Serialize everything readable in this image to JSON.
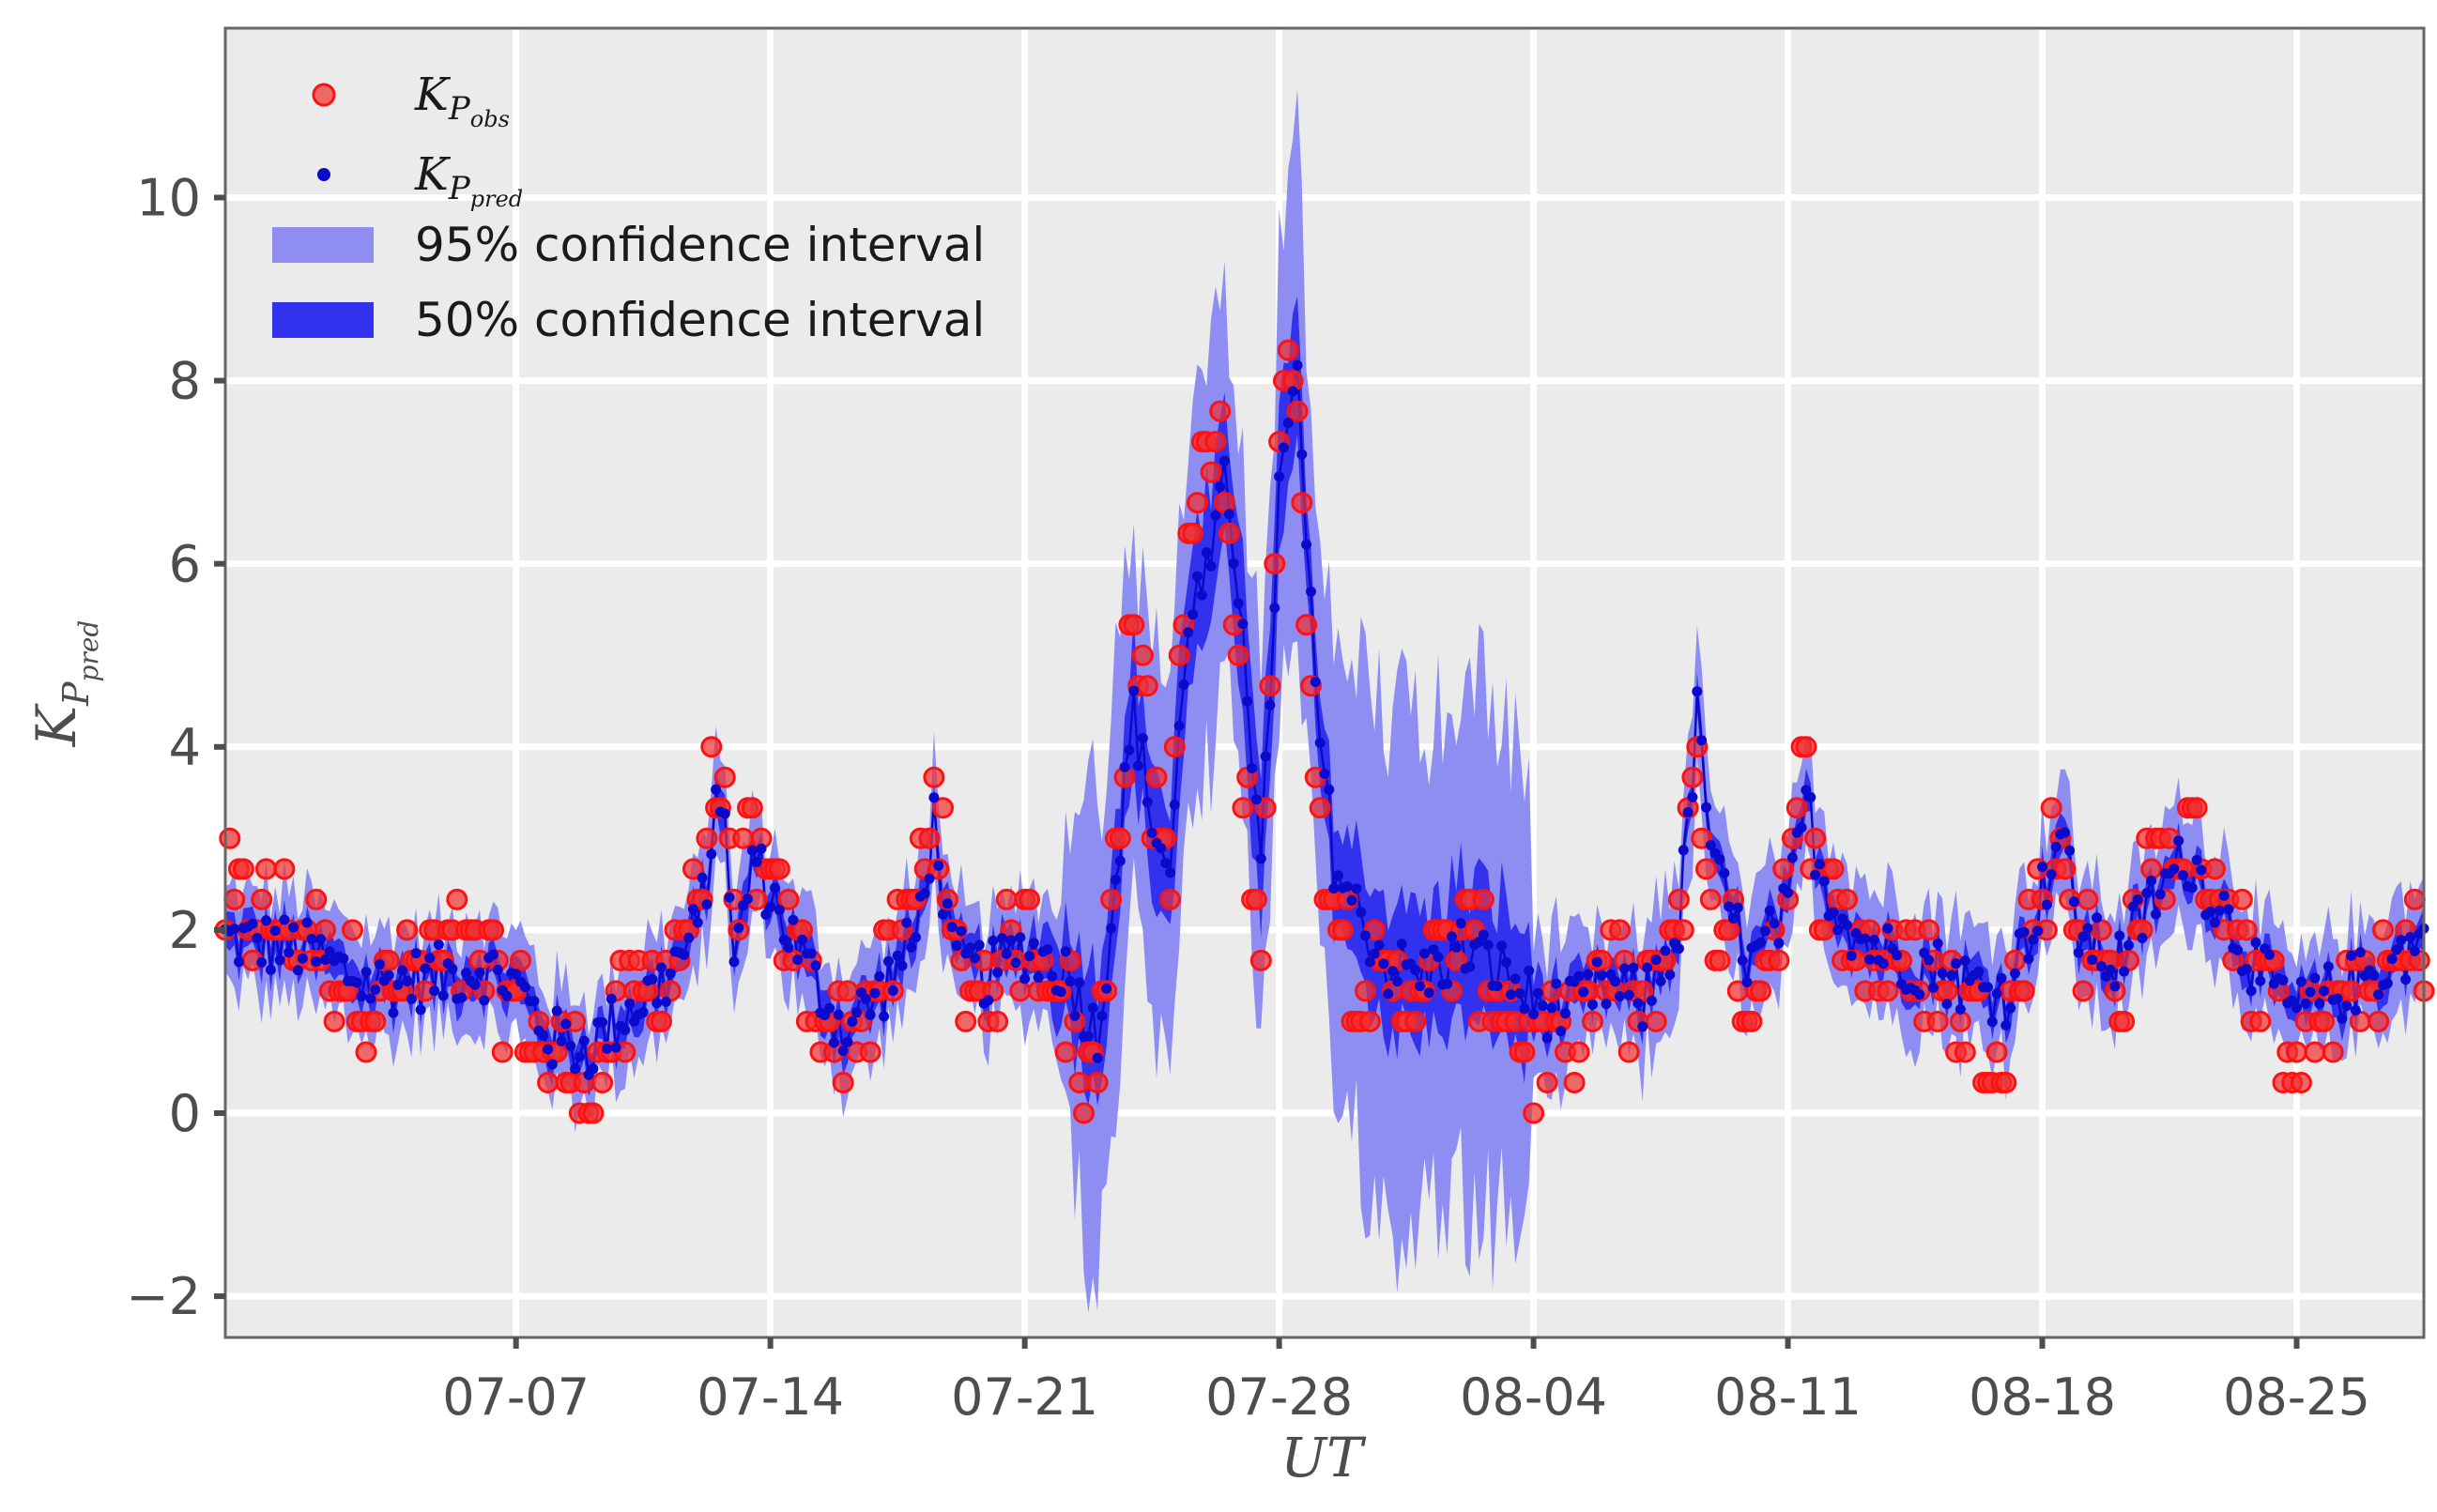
{
  "chart_data": {
    "type": "scatter",
    "title": "",
    "xlabel": "UT",
    "ylabel": {
      "base": "K",
      "sub1": "P",
      "sub2": "pred"
    },
    "x_domain": [
      "2019-06-29",
      "2019-08-28T12:00"
    ],
    "ylim": [
      -2.45,
      11.85
    ],
    "x_ticks": [
      "07-07",
      "07-14",
      "07-21",
      "07-28",
      "08-04",
      "08-11",
      "08-18",
      "08-25"
    ],
    "x_tick_dates": [
      "2019-07-07",
      "2019-07-14",
      "2019-07-21",
      "2019-07-28",
      "2019-08-04",
      "2019-08-11",
      "2019-08-18",
      "2019-08-25"
    ],
    "y_ticks": [
      -2,
      0,
      2,
      4,
      6,
      8,
      10
    ],
    "y_tick_labels": [
      "−2",
      "0",
      "2",
      "4",
      "6",
      "8",
      "10"
    ],
    "grid": true,
    "legend_position": "top-left",
    "colors": {
      "observed": "#f22f2f",
      "predicted": "#0a0acc",
      "ci95": "#8e8ef2",
      "ci50": "#3232ee",
      "panel": "#ebebeb",
      "grid": "#ffffff",
      "frame": "#666666"
    },
    "legend": [
      {
        "kind": "obs",
        "base": "K",
        "sub1": "P",
        "sub2": "obs"
      },
      {
        "kind": "pred",
        "base": "K",
        "sub1": "P",
        "sub2": "pred"
      },
      {
        "kind": "ci95",
        "label": "95% confidence interval"
      },
      {
        "kind": "ci50",
        "label": "50% confidence interval"
      }
    ],
    "series": [
      {
        "name": "predicted",
        "sampling": "every 3 hours from 2019-06-29T00:00 (one value per 3-hour bin, in order)",
        "values": [],
        "keyframes": [
          [
            "2019-06-29T00:00",
            1.9
          ],
          [
            "2019-07-01",
            1.8
          ],
          [
            "2019-07-03",
            1.4
          ],
          [
            "2019-07-05",
            1.5
          ],
          [
            "2019-07-06",
            1.6
          ],
          [
            "2019-07-07",
            1.4
          ],
          [
            "2019-07-08",
            0.8
          ],
          [
            "2019-07-09",
            0.7
          ],
          [
            "2019-07-10",
            1.1
          ],
          [
            "2019-07-11",
            1.4
          ],
          [
            "2019-07-12",
            2.0
          ],
          [
            "2019-07-12T12:00",
            3.2
          ],
          [
            "2019-07-12T18:00",
            3.5
          ],
          [
            "2019-07-13",
            1.5
          ],
          [
            "2019-07-13T12:00",
            2.8
          ],
          [
            "2019-07-14",
            2.4
          ],
          [
            "2019-07-15",
            1.6
          ],
          [
            "2019-07-16",
            0.9
          ],
          [
            "2019-07-17",
            1.3
          ],
          [
            "2019-07-18",
            1.9
          ],
          [
            "2019-07-18T12:00",
            3.2
          ],
          [
            "2019-07-19",
            1.7
          ],
          [
            "2019-07-20",
            1.5
          ],
          [
            "2019-07-21",
            1.8
          ],
          [
            "2019-07-22",
            1.6
          ],
          [
            "2019-07-22T12:00",
            1.3
          ],
          [
            "2019-07-23",
            0.8
          ],
          [
            "2019-07-23T12:00",
            2.6
          ],
          [
            "2019-07-24",
            4.4
          ],
          [
            "2019-07-24T12:00",
            3.2
          ],
          [
            "2019-07-25",
            2.6
          ],
          [
            "2019-07-25T12:00",
            5.5
          ],
          [
            "2019-07-26",
            5.8
          ],
          [
            "2019-07-26T12:00",
            6.8
          ],
          [
            "2019-07-27",
            5.5
          ],
          [
            "2019-07-27T12:00",
            2.5
          ],
          [
            "2019-07-28",
            6.8
          ],
          [
            "2019-07-28T12:00",
            8.0
          ],
          [
            "2019-07-29",
            4.5
          ],
          [
            "2019-07-29T12:00",
            2.8
          ],
          [
            "2019-07-30",
            2.3
          ],
          [
            "2019-07-31",
            1.6
          ],
          [
            "2019-08-01",
            1.5
          ],
          [
            "2019-08-02",
            1.8
          ],
          [
            "2019-08-03",
            1.6
          ],
          [
            "2019-08-04",
            1.2
          ],
          [
            "2019-08-05",
            1.1
          ],
          [
            "2019-08-06",
            1.4
          ],
          [
            "2019-08-07",
            1.2
          ],
          [
            "2019-08-08",
            2.0
          ],
          [
            "2019-08-08T12:00",
            4.3
          ],
          [
            "2019-08-09",
            2.6
          ],
          [
            "2019-08-10",
            1.6
          ],
          [
            "2019-08-11",
            2.2
          ],
          [
            "2019-08-11T12:00",
            3.4
          ],
          [
            "2019-08-12",
            2.5
          ],
          [
            "2019-08-13",
            1.9
          ],
          [
            "2019-08-14",
            1.7
          ],
          [
            "2019-08-15",
            1.6
          ],
          [
            "2019-08-16",
            1.4
          ],
          [
            "2019-08-17",
            1.3
          ],
          [
            "2019-08-18",
            2.4
          ],
          [
            "2019-08-18T12:00",
            3.1
          ],
          [
            "2019-08-19",
            2.0
          ],
          [
            "2019-08-20",
            1.6
          ],
          [
            "2019-08-21",
            2.3
          ],
          [
            "2019-08-22",
            2.8
          ],
          [
            "2019-08-23",
            2.2
          ],
          [
            "2019-08-24",
            1.5
          ],
          [
            "2019-08-25",
            1.1
          ],
          [
            "2019-08-26",
            1.3
          ],
          [
            "2019-08-27",
            1.5
          ],
          [
            "2019-08-28T12:00",
            1.9
          ]
        ],
        "jitter": 0.35
      },
      {
        "name": "observed",
        "sampling": "every 3 hours from 2019-06-29T00:00, Kp values on the thirds grid",
        "keyframes": [
          [
            "2019-06-29T00:00",
            2.3
          ],
          [
            "2019-07-01",
            2.0
          ],
          [
            "2019-07-03",
            1.3
          ],
          [
            "2019-07-05",
            1.7
          ],
          [
            "2019-07-06",
            1.6
          ],
          [
            "2019-07-07",
            1.2
          ],
          [
            "2019-07-08",
            0.5
          ],
          [
            "2019-07-09",
            0.4
          ],
          [
            "2019-07-10",
            1.0
          ],
          [
            "2019-07-11",
            1.4
          ],
          [
            "2019-07-12",
            2.3
          ],
          [
            "2019-07-12T12:00",
            3.8
          ],
          [
            "2019-07-12T18:00",
            3.3
          ],
          [
            "2019-07-13",
            1.8
          ],
          [
            "2019-07-13T12:00",
            3.2
          ],
          [
            "2019-07-14",
            2.3
          ],
          [
            "2019-07-15",
            1.5
          ],
          [
            "2019-07-16",
            0.8
          ],
          [
            "2019-07-17",
            1.4
          ],
          [
            "2019-07-18",
            2.2
          ],
          [
            "2019-07-18T12:00",
            3.8
          ],
          [
            "2019-07-19",
            1.6
          ],
          [
            "2019-07-20",
            1.4
          ],
          [
            "2019-07-21",
            2.0
          ],
          [
            "2019-07-22",
            1.5
          ],
          [
            "2019-07-22T12:00",
            0.6
          ],
          [
            "2019-07-23",
            0.4
          ],
          [
            "2019-07-23T12:00",
            3.0
          ],
          [
            "2019-07-24",
            5.6
          ],
          [
            "2019-07-24T12:00",
            3.5
          ],
          [
            "2019-07-25",
            2.8
          ],
          [
            "2019-07-25T12:00",
            6.2
          ],
          [
            "2019-07-26",
            7.3
          ],
          [
            "2019-07-26T12:00",
            7.0
          ],
          [
            "2019-07-27",
            3.8
          ],
          [
            "2019-07-27T12:00",
            2.0
          ],
          [
            "2019-07-28",
            7.5
          ],
          [
            "2019-07-28T12:00",
            8.3
          ],
          [
            "2019-07-29",
            3.4
          ],
          [
            "2019-07-29T12:00",
            2.6
          ],
          [
            "2019-07-30",
            1.6
          ],
          [
            "2019-07-31",
            1.2
          ],
          [
            "2019-08-01",
            1.6
          ],
          [
            "2019-08-02",
            1.9
          ],
          [
            "2019-08-03",
            1.4
          ],
          [
            "2019-08-04",
            0.6
          ],
          [
            "2019-08-05",
            0.8
          ],
          [
            "2019-08-06",
            1.6
          ],
          [
            "2019-08-07",
            1.0
          ],
          [
            "2019-08-08",
            2.3
          ],
          [
            "2019-08-08T12:00",
            3.8
          ],
          [
            "2019-08-09",
            2.0
          ],
          [
            "2019-08-10",
            1.3
          ],
          [
            "2019-08-11",
            2.4
          ],
          [
            "2019-08-11T12:00",
            3.7
          ],
          [
            "2019-08-12",
            2.3
          ],
          [
            "2019-08-13",
            1.9
          ],
          [
            "2019-08-14",
            1.6
          ],
          [
            "2019-08-15",
            1.5
          ],
          [
            "2019-08-16",
            1.0
          ],
          [
            "2019-08-17",
            0.9
          ],
          [
            "2019-08-18",
            2.5
          ],
          [
            "2019-08-18T12:00",
            3.0
          ],
          [
            "2019-08-19",
            2.0
          ],
          [
            "2019-08-20",
            1.3
          ],
          [
            "2019-08-21",
            2.6
          ],
          [
            "2019-08-22",
            3.0
          ],
          [
            "2019-08-23",
            2.4
          ],
          [
            "2019-08-24",
            1.3
          ],
          [
            "2019-08-25",
            0.8
          ],
          [
            "2019-08-26",
            1.1
          ],
          [
            "2019-08-27",
            1.4
          ],
          [
            "2019-08-28T12:00",
            1.8
          ]
        ],
        "jitter": 0.6
      }
    ],
    "ci_half_width_95": [
      [
        "2019-06-29T00:00",
        0.55
      ],
      [
        "2019-07-21",
        0.6
      ],
      [
        "2019-07-22",
        1.0
      ],
      [
        "2019-07-22T12:00",
        2.4
      ],
      [
        "2019-07-23",
        2.6
      ],
      [
        "2019-07-24",
        2.0
      ],
      [
        "2019-07-25",
        2.2
      ],
      [
        "2019-07-26",
        2.3
      ],
      [
        "2019-07-27",
        1.8
      ],
      [
        "2019-07-28",
        2.4
      ],
      [
        "2019-07-28T12:00",
        2.6
      ],
      [
        "2019-07-29",
        1.9
      ],
      [
        "2019-07-30",
        2.7
      ],
      [
        "2019-08-01",
        2.9
      ],
      [
        "2019-08-03T18:00",
        2.9
      ],
      [
        "2019-08-04",
        0.9
      ],
      [
        "2019-08-06",
        0.6
      ],
      [
        "2019-08-08",
        0.8
      ],
      [
        "2019-08-09",
        0.6
      ],
      [
        "2019-08-12",
        0.7
      ],
      [
        "2019-08-28T12:00",
        0.55
      ]
    ],
    "ci_half_width_50": [
      [
        "2019-06-29T00:00",
        0.2
      ],
      [
        "2019-07-21",
        0.22
      ],
      [
        "2019-07-22T12:00",
        0.6
      ],
      [
        "2019-07-24",
        0.7
      ],
      [
        "2019-07-26",
        0.8
      ],
      [
        "2019-07-28",
        0.8
      ],
      [
        "2019-07-29",
        0.5
      ],
      [
        "2019-07-30",
        0.6
      ],
      [
        "2019-08-01",
        0.75
      ],
      [
        "2019-08-03T18:00",
        0.75
      ],
      [
        "2019-08-04",
        0.3
      ],
      [
        "2019-08-06",
        0.2
      ],
      [
        "2019-08-28T12:00",
        0.2
      ]
    ]
  }
}
